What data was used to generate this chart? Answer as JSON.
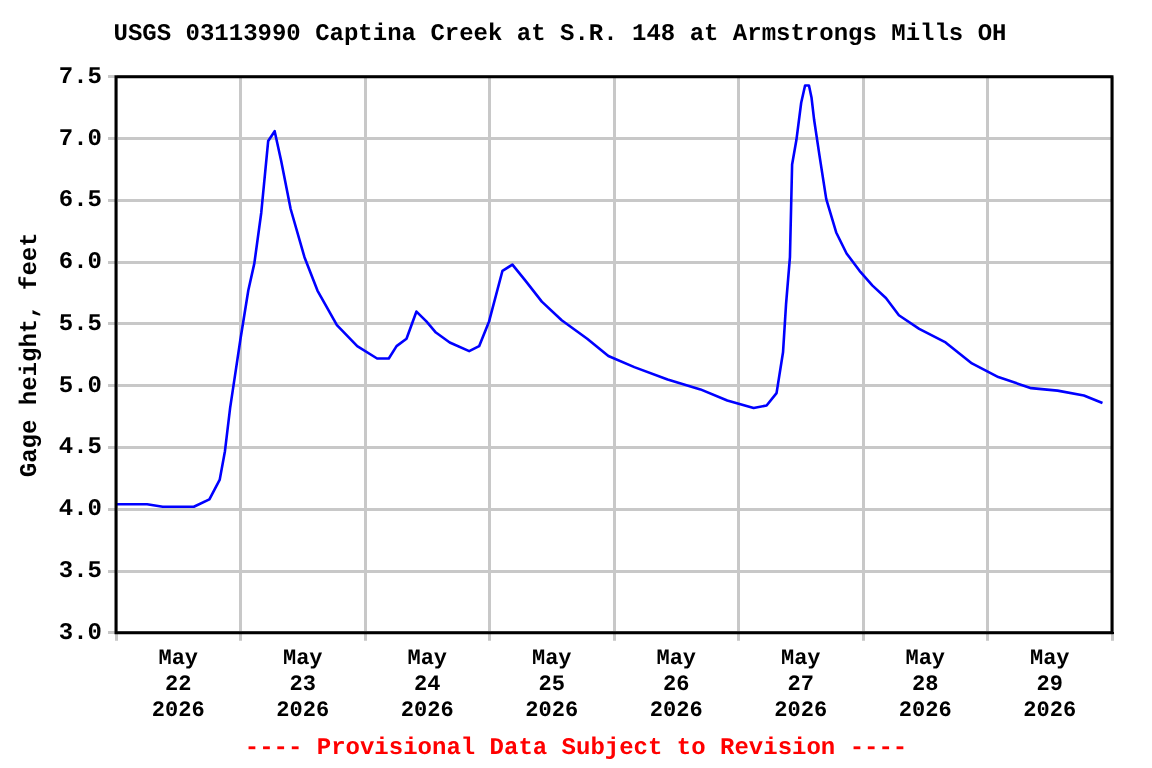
{
  "chart_data": {
    "type": "line",
    "title": "USGS 03113990 Captina Creek at S.R. 148 at Armstrongs Mills OH",
    "ylabel": "Gage height, feet",
    "annotations": [
      "---- Provisional Data Subject to Revision ----"
    ],
    "x": [
      "2026-05-22T00:00",
      "2026-05-22T06:00",
      "2026-05-22T09:00",
      "2026-05-22T15:00",
      "2026-05-22T18:00",
      "2026-05-22T20:00",
      "2026-05-22T21:00",
      "2026-05-22T22:00",
      "2026-05-22T23:00",
      "2026-05-23T00:00",
      "2026-05-23T01:30",
      "2026-05-23T02:40",
      "2026-05-23T04:00",
      "2026-05-23T05:20",
      "2026-05-23T06:35",
      "2026-05-23T07:50",
      "2026-05-23T09:40",
      "2026-05-23T12:20",
      "2026-05-23T14:50",
      "2026-05-23T18:35",
      "2026-05-23T22:30",
      "2026-05-24T02:20",
      "2026-05-24T04:35",
      "2026-05-24T06:05",
      "2026-05-24T08:00",
      "2026-05-24T09:55",
      "2026-05-24T11:50",
      "2026-05-24T13:40",
      "2026-05-24T16:20",
      "2026-05-24T20:05",
      "2026-05-24T22:00",
      "2026-05-24T23:55",
      "2026-05-25T02:30",
      "2026-05-25T04:25",
      "2026-05-25T06:55",
      "2026-05-25T10:05",
      "2026-05-25T13:55",
      "2026-05-25T18:50",
      "2026-05-25T22:55",
      "2026-05-26T03:55",
      "2026-05-26T10:20",
      "2026-05-26T16:40",
      "2026-05-26T21:50",
      "2026-05-27T02:55",
      "2026-05-27T05:25",
      "2026-05-27T07:20",
      "2026-05-27T08:35",
      "2026-05-27T09:10",
      "2026-05-27T09:55",
      "2026-05-27T10:20",
      "2026-05-27T11:10",
      "2026-05-27T12:05",
      "2026-05-27T12:50",
      "2026-05-27T13:35",
      "2026-05-27T14:05",
      "2026-05-27T14:35",
      "2026-05-27T15:35",
      "2026-05-27T16:55",
      "2026-05-27T18:50",
      "2026-05-27T20:50",
      "2026-05-27T23:20",
      "2026-05-28T01:50",
      "2026-05-28T04:25",
      "2026-05-28T06:55",
      "2026-05-28T10:50",
      "2026-05-28T15:55",
      "2026-05-28T21:00",
      "2026-05-29T02:05",
      "2026-05-29T08:25",
      "2026-05-29T13:30",
      "2026-05-29T18:35",
      "2026-05-29T22:10"
    ],
    "series": [
      {
        "color": "#0000ff",
        "values": [
          4.04,
          4.04,
          4.02,
          4.02,
          4.08,
          4.24,
          4.47,
          4.82,
          5.1,
          5.38,
          5.77,
          5.99,
          6.4,
          6.98,
          7.06,
          6.82,
          6.43,
          6.04,
          5.77,
          5.49,
          5.32,
          5.22,
          5.22,
          5.32,
          5.38,
          5.6,
          5.52,
          5.43,
          5.35,
          5.28,
          5.32,
          5.52,
          5.93,
          5.98,
          5.85,
          5.68,
          5.53,
          5.38,
          5.24,
          5.15,
          5.05,
          4.97,
          4.88,
          4.82,
          4.84,
          4.94,
          5.27,
          5.66,
          6.04,
          6.79,
          6.99,
          7.29,
          7.43,
          7.43,
          7.33,
          7.15,
          6.87,
          6.51,
          6.24,
          6.07,
          5.93,
          5.81,
          5.71,
          5.57,
          5.46,
          5.35,
          5.18,
          5.07,
          4.98,
          4.96,
          4.92,
          4.86
        ]
      }
    ],
    "xlim": [
      "2026-05-22T00:00",
      "2026-05-30T00:00"
    ],
    "xticks": [
      {
        "value": "2026-05-22T00:00",
        "label": null
      },
      {
        "value": "2026-05-22T12:00",
        "label": "May\n22\n2026"
      },
      {
        "value": "2026-05-23T00:00",
        "label": null
      },
      {
        "value": "2026-05-23T12:00",
        "label": "May\n23\n2026"
      },
      {
        "value": "2026-05-24T00:00",
        "label": null
      },
      {
        "value": "2026-05-24T12:00",
        "label": "May\n24\n2026"
      },
      {
        "value": "2026-05-25T00:00",
        "label": null
      },
      {
        "value": "2026-05-25T12:00",
        "label": "May\n25\n2026"
      },
      {
        "value": "2026-05-26T00:00",
        "label": null
      },
      {
        "value": "2026-05-26T12:00",
        "label": "May\n26\n2026"
      },
      {
        "value": "2026-05-27T00:00",
        "label": null
      },
      {
        "value": "2026-05-27T12:00",
        "label": "May\n27\n2026"
      },
      {
        "value": "2026-05-28T00:00",
        "label": null
      },
      {
        "value": "2026-05-28T12:00",
        "label": "May\n28\n2026"
      },
      {
        "value": "2026-05-29T00:00",
        "label": null
      },
      {
        "value": "2026-05-29T12:00",
        "label": "May\n29\n2026"
      },
      {
        "value": "2026-05-30T00:00",
        "label": null
      }
    ],
    "ylim": [
      3,
      7.5
    ],
    "yticks": [
      {
        "value": 3,
        "label": "3.0"
      },
      3.5,
      {
        "value": 4,
        "label": "4.0"
      },
      4.5,
      {
        "value": 5,
        "label": "5.0"
      },
      5.5,
      {
        "value": 6,
        "label": "6.0"
      },
      6.5,
      {
        "value": 7,
        "label": "7.0"
      },
      7.5
    ],
    "grid": true,
    "legend": false,
    "marker": "none",
    "line_style": "solid"
  }
}
